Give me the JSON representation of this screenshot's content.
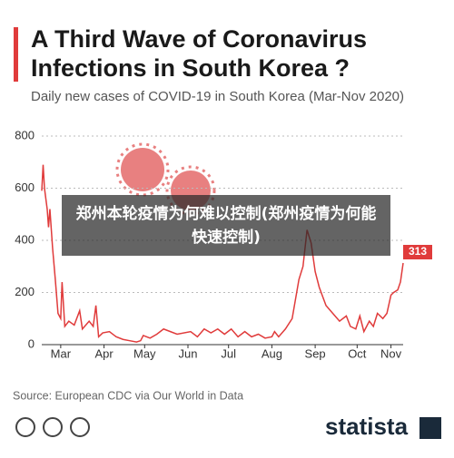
{
  "chart_data": {
    "type": "line",
    "title_line1": "A Third Wave of Coronavirus",
    "title_line2": "Infections in South Korea ?",
    "subtitle": "Daily new cases of COVID-19 in South Korea (Mar-Nov 2020)",
    "color": "#e03b3b",
    "x": [
      0,
      1,
      2,
      4,
      5,
      6,
      8,
      10,
      12,
      14,
      15,
      17,
      20,
      24,
      28,
      30,
      35,
      38,
      40,
      42,
      45,
      50,
      55,
      60,
      65,
      70,
      73,
      75,
      80,
      85,
      90,
      95,
      100,
      110,
      115,
      120,
      125,
      130,
      135,
      140,
      145,
      150,
      155,
      160,
      165,
      170,
      172,
      175,
      180,
      185,
      190,
      193,
      196,
      199,
      202,
      205,
      210,
      215,
      220,
      225,
      228,
      232,
      235,
      238,
      242,
      245,
      248,
      252,
      255,
      258,
      260,
      263,
      265,
      267
    ],
    "values": [
      590,
      690,
      600,
      520,
      450,
      520,
      370,
      250,
      120,
      100,
      240,
      70,
      90,
      75,
      130,
      60,
      90,
      70,
      150,
      30,
      45,
      50,
      30,
      20,
      15,
      10,
      15,
      35,
      25,
      40,
      60,
      50,
      40,
      50,
      30,
      60,
      45,
      60,
      40,
      60,
      30,
      50,
      30,
      40,
      25,
      30,
      50,
      30,
      60,
      100,
      250,
      300,
      440,
      390,
      280,
      220,
      150,
      120,
      90,
      110,
      70,
      60,
      110,
      50,
      90,
      70,
      120,
      100,
      120,
      190,
      200,
      210,
      240,
      313
    ],
    "xlim": [
      0,
      267
    ],
    "xticks": [
      {
        "value": 14,
        "label": "Mar"
      },
      {
        "value": 46,
        "label": "Apr"
      },
      {
        "value": 76,
        "label": "May"
      },
      {
        "value": 108,
        "label": "Jun"
      },
      {
        "value": 138,
        "label": "Jul"
      },
      {
        "value": 170,
        "label": "Aug"
      },
      {
        "value": 202,
        "label": "Sep"
      },
      {
        "value": 233,
        "label": "Oct"
      },
      {
        "value": 258,
        "label": "Nov"
      }
    ],
    "ylim": [
      0,
      800
    ],
    "yticks": [
      0,
      200,
      400,
      600,
      800
    ],
    "grid": true
  },
  "source": "Source: European CDC via Our World in Data",
  "brand": "statista",
  "overlay": {
    "caption": "郑州本轮疫情为何难以控制(郑州疫情为何能快速控制)"
  }
}
